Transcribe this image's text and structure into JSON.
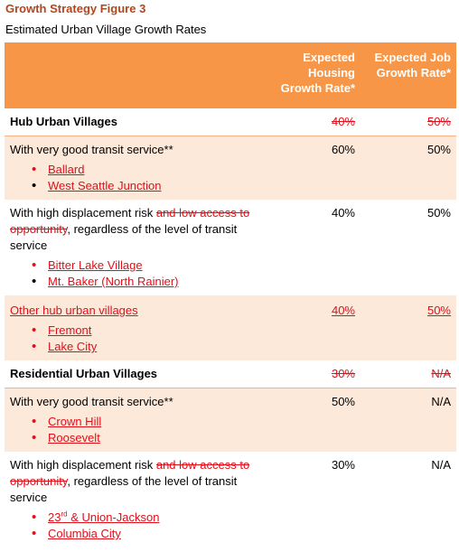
{
  "figure": {
    "title": "Growth Strategy Figure 3",
    "subtitle": "Estimated Urban Village Growth Rates"
  },
  "header": {
    "col1": "",
    "housing": "Expected Housing Growth Rate*",
    "job": "Expected Job Growth Rate*"
  },
  "rows": {
    "hub": {
      "label": "Hub Urban Villages",
      "housing": "40%",
      "job": "50%"
    },
    "hub_transit": {
      "label": "With very good transit service**",
      "housing": "60%",
      "job": "50%",
      "items": [
        "Ballard",
        "West Seattle Junction"
      ]
    },
    "hub_displacement": {
      "label_pre": "With high displacement risk ",
      "label_struck": "and low access to opportunity",
      "label_post": ", regardless of the level of transit service",
      "housing": "40%",
      "job": "50%",
      "items": [
        "Bitter Lake Village",
        "Mt. Baker (North Rainier)"
      ]
    },
    "hub_other": {
      "label": "Other hub urban villages",
      "housing": "40%",
      "job": "50%",
      "items": [
        "Fremont",
        "Lake City"
      ]
    },
    "res": {
      "label": "Residential Urban Villages",
      "housing": "30%",
      "job": "N/A"
    },
    "res_transit": {
      "label": "With very good transit service**",
      "housing": "50%",
      "job": "N/A",
      "items": [
        "Crown Hill",
        "Roosevelt"
      ]
    },
    "res_displacement": {
      "label_pre": "With high displacement risk ",
      "label_struck": "and low access to opportunity",
      "label_post": ", regardless of the level of transit service",
      "housing": "30%",
      "job": "N/A",
      "item1_base": "23",
      "item1_sup": "rd",
      "item1_rest": " & Union-Jackson",
      "item2": "Columbia City"
    }
  },
  "colors": {
    "header_bg": "#f79646",
    "tint_bg": "#fde9d9",
    "title": "#b4451b",
    "edit_red": "#e0101a"
  }
}
